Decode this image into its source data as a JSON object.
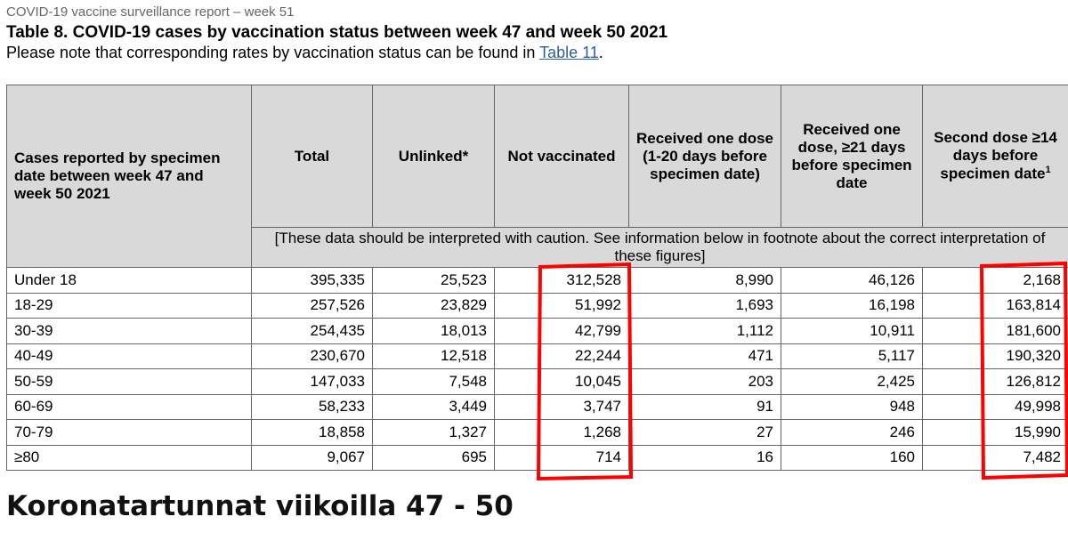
{
  "header": {
    "report": "COVID-19 vaccine surveillance report – week 51",
    "title": "Table 8. COVID-19 cases by vaccination status between week 47 and week 50 2021",
    "note_before": "Please note that corresponding rates by vaccination status can be found in ",
    "note_link": "Table 11",
    "note_after": "."
  },
  "table": {
    "columns": [
      "Cases reported by specimen date between week 47 and week 50 2021",
      "Total",
      "Unlinked*",
      "Not vaccinated",
      "Received one dose (1-20 days before specimen date)",
      "Received one dose, ≥21 days before specimen date",
      "Second dose ≥14 days before specimen date"
    ],
    "last_column_sup": "1",
    "caution": "[These data should be interpreted with caution. See information below in footnote about the correct interpretation of these figures]",
    "rows": [
      [
        "Under 18",
        "395,335",
        "25,523",
        "312,528",
        "8,990",
        "46,126",
        "2,168"
      ],
      [
        "18-29",
        "257,526",
        "23,829",
        "51,992",
        "1,693",
        "16,198",
        "163,814"
      ],
      [
        "30-39",
        "254,435",
        "18,013",
        "42,799",
        "1,112",
        "10,911",
        "181,600"
      ],
      [
        "40-49",
        "230,670",
        "12,518",
        "22,244",
        "471",
        "5,117",
        "190,320"
      ],
      [
        "50-59",
        "147,033",
        "7,548",
        "10,045",
        "203",
        "2,425",
        "126,812"
      ],
      [
        "60-69",
        "58,233",
        "3,449",
        "3,747",
        "91",
        "948",
        "49,998"
      ],
      [
        "70-79",
        "18,858",
        "1,327",
        "1,268",
        "27",
        "246",
        "15,990"
      ],
      [
        "≥80",
        "9,067",
        "695",
        "714",
        "16",
        "160",
        "7,482"
      ]
    ]
  },
  "caption": "Koronatartunnat viikoilla 47 - 50"
}
